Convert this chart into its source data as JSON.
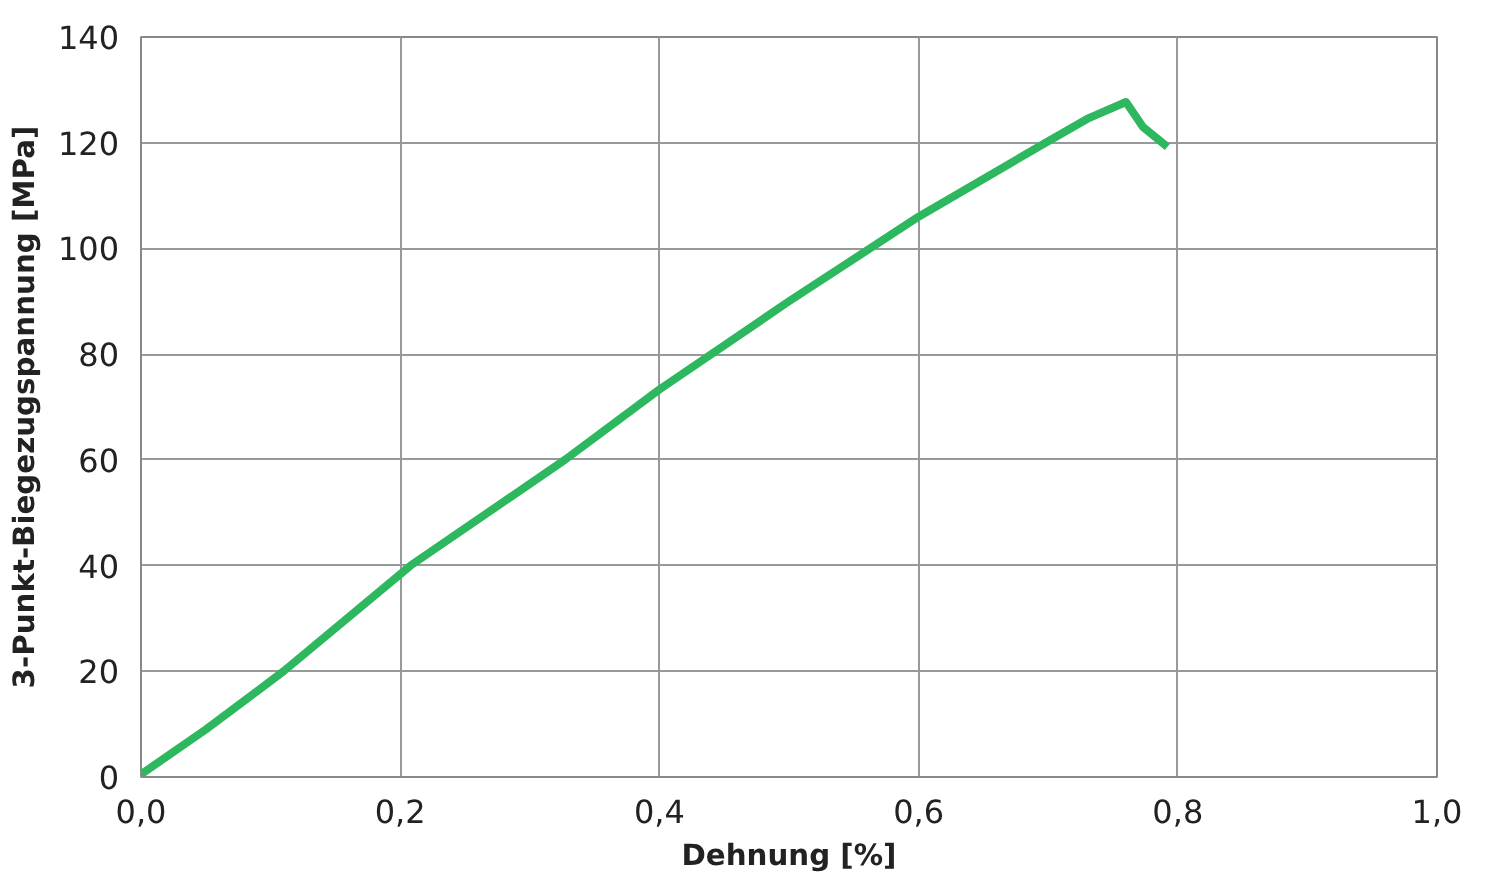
{
  "chart_data": {
    "type": "line",
    "xlabel": "Dehnung [%]",
    "ylabel": "3-Punkt-Biegezugspannung [MPa]",
    "x": [
      0,
      0.05,
      0.11,
      0.208,
      0.327,
      0.4,
      0.5,
      0.6,
      0.698,
      0.73,
      0.76,
      0.773,
      0.792
    ],
    "series": [
      {
        "color": "#2db85f",
        "values": [
          0.5,
          9,
          20,
          40,
          60,
          73.3,
          90,
          106,
          120,
          124.5,
          127.7,
          123,
          119.2
        ]
      }
    ],
    "xlim": [
      0,
      1
    ],
    "ylim": [
      0,
      140
    ],
    "xticks": [
      {
        "value": 0,
        "label": "0,0"
      },
      {
        "value": 0.2,
        "label": "0,2"
      },
      {
        "value": 0.4,
        "label": "0,4"
      },
      {
        "value": 0.6,
        "label": "0,6"
      },
      {
        "value": 0.8,
        "label": "0,8"
      },
      {
        "value": 1,
        "label": "1,0"
      }
    ],
    "yticks": [
      0,
      20,
      40,
      60,
      80,
      100,
      120,
      140
    ],
    "grid": true,
    "marker": "none",
    "line_style": "solid"
  }
}
